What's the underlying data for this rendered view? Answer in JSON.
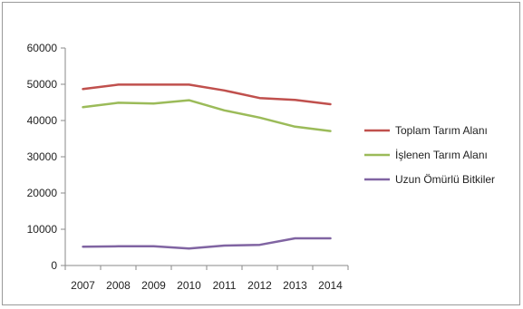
{
  "chart_data": {
    "type": "line",
    "categories": [
      "2007",
      "2008",
      "2009",
      "2010",
      "2011",
      "2012",
      "2013",
      "2014"
    ],
    "ylim": [
      0,
      60000
    ],
    "yticks": [
      0,
      10000,
      20000,
      30000,
      40000,
      50000,
      60000
    ],
    "ytick_labels": [
      "0",
      "10000",
      "20000",
      "30000",
      "40000",
      "50000",
      "60000"
    ],
    "grid": false,
    "legend_position": "right",
    "series": [
      {
        "name": "Toplam Tarım Alanı",
        "color": "#c0504d",
        "values": [
          48700,
          49900,
          49900,
          49900,
          48300,
          46200,
          45700,
          44500
        ]
      },
      {
        "name": "İşlenen Tarım Alanı",
        "color": "#9bbb59",
        "values": [
          43700,
          44900,
          44700,
          45600,
          42800,
          40800,
          38300,
          37100
        ]
      },
      {
        "name": "Uzun Ömürlü Bitkiler",
        "color": "#8064a2",
        "values": [
          5200,
          5300,
          5300,
          4700,
          5500,
          5700,
          7500,
          7500
        ]
      }
    ]
  }
}
